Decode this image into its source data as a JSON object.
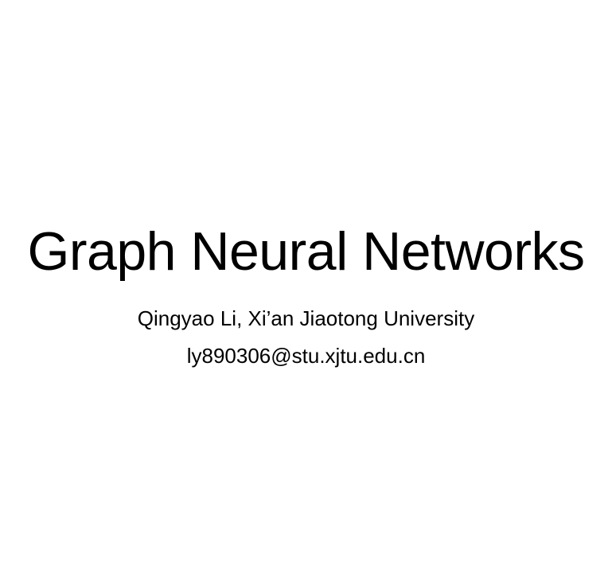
{
  "slide": {
    "title": "Graph Neural Networks",
    "author_line": "Qingyao Li, Xi’an Jiaotong University",
    "email": "ly890306@stu.xjtu.edu.cn"
  }
}
